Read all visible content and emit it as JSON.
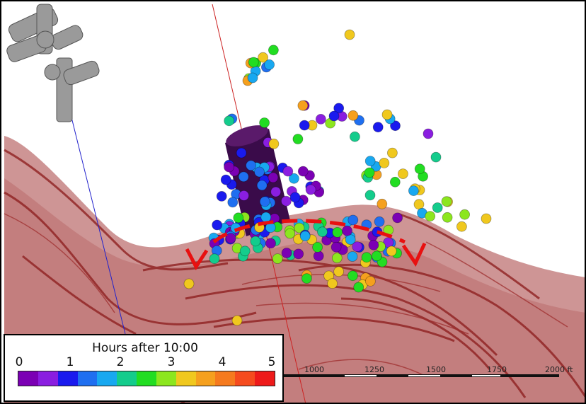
{
  "legend": {
    "title": "Hours after 10:00",
    "ticks": [
      "0",
      "1",
      "2",
      "3",
      "4",
      "5"
    ],
    "colors": [
      "#7b00b4",
      "#8a1ee0",
      "#1a1aee",
      "#1f6ff0",
      "#18a8f0",
      "#14cc8c",
      "#22dd22",
      "#8ce61e",
      "#f0c81e",
      "#f5a01e",
      "#f57a1e",
      "#f54b1e",
      "#ee1a1a"
    ]
  },
  "scale_bar": {
    "labels": [
      "1000",
      "1250",
      "1500",
      "1750",
      "2000 ft"
    ]
  },
  "colors": {
    "terrain": "#c98a8a",
    "fault_lines": "#8b1a1a",
    "wellbore": "#3a0b4a",
    "arrows": "#e81010"
  }
}
